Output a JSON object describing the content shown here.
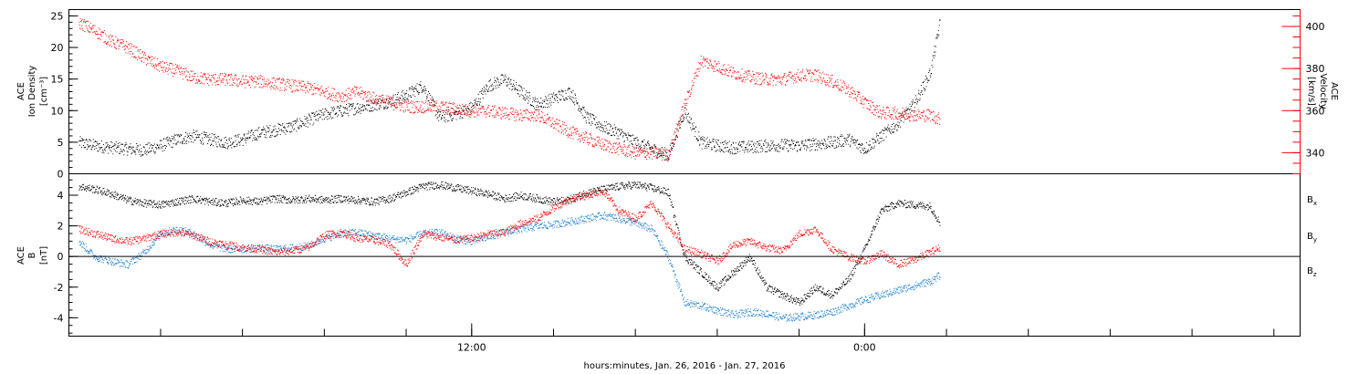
{
  "chart_data": [
    {
      "type": "scatter",
      "panel": "top",
      "ylabel_left": [
        "ACE",
        "Ion Density",
        "[cm⁻³]"
      ],
      "ylabel_right": [
        "ACE",
        "Velocity",
        "[km/s]"
      ],
      "ylim_left": [
        0,
        26
      ],
      "yticks_left": [
        0,
        5,
        10,
        15,
        20,
        25
      ],
      "ylim_right": [
        330,
        408
      ],
      "yticks_right": [
        340,
        360,
        380,
        400
      ],
      "colors": {
        "left": "#000000",
        "right": "#ff0000"
      },
      "series": [
        {
          "axis": "left",
          "color": "#000000",
          "x": [
            0,
            0.5,
            1,
            1.5,
            2,
            2.5,
            3,
            3.5,
            4,
            4.5,
            5,
            5.5,
            6,
            6.5,
            7,
            7.5,
            8,
            8.5,
            9,
            9.5,
            10,
            10.5,
            11,
            11.5,
            12,
            12.5,
            13,
            13.5,
            14,
            14.5,
            15,
            15.5,
            16,
            16.5,
            17,
            17.5,
            18,
            18.5,
            19,
            19.5,
            20,
            20.5,
            21,
            21.5,
            22,
            22.5,
            23,
            23.5,
            24,
            24.5,
            25,
            25.5,
            26,
            26.3
          ],
          "values": [
            5,
            4.5,
            4.2,
            4,
            3.8,
            4.5,
            5.5,
            6,
            5.5,
            5,
            5.5,
            6.5,
            7,
            7.5,
            8.5,
            9.5,
            10,
            10.5,
            11,
            11.5,
            12.5,
            14,
            9,
            9.5,
            10.5,
            14,
            15,
            13,
            11,
            12,
            13,
            9,
            7.5,
            6.5,
            5,
            4,
            3,
            10,
            5,
            4.5,
            4.2,
            4.3,
            4.5,
            4.6,
            4.5,
            4.8,
            5,
            5.5,
            4,
            6,
            8,
            11,
            16,
            24
          ]
        },
        {
          "axis": "right",
          "color": "#ff0000",
          "x": [
            0,
            0.5,
            1,
            1.5,
            2,
            2.5,
            3,
            3.5,
            4,
            4.5,
            5,
            5.5,
            6,
            6.5,
            7,
            7.5,
            8,
            8.5,
            9,
            9.5,
            10,
            10.5,
            11,
            11.5,
            12,
            12.5,
            13,
            13.5,
            14,
            14.5,
            15,
            15.5,
            16,
            16.5,
            17,
            17.5,
            18,
            18.5,
            19,
            19.5,
            20,
            20.5,
            21,
            21.5,
            22,
            22.5,
            23,
            23.5,
            24,
            24.5,
            25,
            25.5,
            26,
            26.3
          ],
          "values": [
            402,
            398,
            393,
            390,
            385,
            381,
            379,
            376,
            375,
            375,
            374,
            374,
            373,
            372,
            371,
            369,
            367,
            369,
            366,
            364,
            362,
            362,
            362,
            361,
            360,
            360,
            359,
            358,
            358,
            354,
            350,
            347,
            344,
            342,
            340,
            340,
            339,
            363,
            384,
            381,
            378,
            376,
            375,
            375,
            377,
            377,
            374,
            370,
            364,
            359,
            359,
            358,
            358,
            356
          ]
        }
      ]
    },
    {
      "type": "scatter",
      "panel": "bottom",
      "ylabel_left": [
        "ACE",
        "B",
        "[nT]"
      ],
      "ylim": [
        -5.2,
        5.4
      ],
      "yticks": [
        -4,
        -2,
        0,
        2,
        4
      ],
      "legend_position": "right",
      "legend": [
        {
          "base": "B",
          "sub": "x",
          "color": "#000000"
        },
        {
          "base": "B",
          "sub": "y",
          "color": "#1a7fd4"
        },
        {
          "base": "B",
          "sub": "z",
          "color": "#ff0000"
        }
      ],
      "series": [
        {
          "name": "Bx",
          "color": "#000000",
          "x": [
            0,
            0.5,
            1,
            1.5,
            2,
            2.5,
            3,
            3.5,
            4,
            4.5,
            5,
            5.5,
            6,
            6.5,
            7,
            7.5,
            8,
            8.5,
            9,
            9.5,
            10,
            10.5,
            11,
            11.5,
            12,
            12.5,
            13,
            13.5,
            14,
            14.5,
            15,
            15.5,
            16,
            16.5,
            17,
            17.5,
            18,
            18.5,
            19,
            19.5,
            20,
            20.5,
            21,
            21.5,
            22,
            22.5,
            23,
            23.5,
            24,
            24.5,
            25,
            25.5,
            26,
            26.3
          ],
          "values": [
            4.6,
            4.4,
            4.1,
            3.7,
            3.5,
            3.4,
            3.6,
            3.8,
            3.6,
            3.5,
            3.7,
            3.6,
            3.8,
            3.7,
            3.8,
            3.7,
            3.8,
            3.7,
            3.6,
            3.8,
            4.2,
            4.6,
            4.7,
            4.5,
            4.3,
            4.1,
            3.8,
            4,
            3.8,
            3.6,
            3.7,
            4.2,
            4.4,
            4.6,
            4.7,
            4.5,
            4.2,
            0,
            -1,
            -2,
            -1,
            0,
            -2,
            -2.5,
            -3,
            -2,
            -2.5,
            -1.5,
            0.5,
            3,
            3.5,
            3.4,
            3.3,
            2.2
          ]
        },
        {
          "name": "By",
          "color": "#1a7fd4",
          "x": [
            0,
            0.5,
            1,
            1.5,
            2,
            2.5,
            3,
            3.5,
            4,
            4.5,
            5,
            5.5,
            6,
            6.5,
            7,
            7.5,
            8,
            8.5,
            9,
            9.5,
            10,
            10.5,
            11,
            11.5,
            12,
            12.5,
            13,
            13.5,
            14,
            14.5,
            15,
            15.5,
            16,
            16.5,
            17,
            17.5,
            18,
            18.5,
            19,
            19.5,
            20,
            20.5,
            21,
            21.5,
            22,
            22.5,
            23,
            23.5,
            24,
            24.5,
            25,
            25.5,
            26,
            26.3
          ],
          "values": [
            1,
            0,
            -0.3,
            -0.5,
            0.3,
            1.5,
            1.8,
            1.5,
            0.8,
            0.5,
            0.5,
            0.6,
            0.5,
            0.6,
            0.7,
            1.2,
            1.5,
            1.6,
            1.4,
            1.2,
            1.1,
            1.5,
            1.6,
            1.2,
            1,
            1.3,
            1.6,
            1.8,
            2,
            2.1,
            2.3,
            2.5,
            2.7,
            2.5,
            2.2,
            1.8,
            0,
            -3,
            -3.2,
            -3.5,
            -3.8,
            -3.6,
            -3.7,
            -4,
            -3.9,
            -3.8,
            -3.6,
            -3.2,
            -2.8,
            -2.5,
            -2.2,
            -1.9,
            -1.6,
            -1.2
          ]
        },
        {
          "name": "Bz",
          "color": "#ff0000",
          "x": [
            0,
            0.5,
            1,
            1.5,
            2,
            2.5,
            3,
            3.5,
            4,
            4.5,
            5,
            5.5,
            6,
            6.5,
            7,
            7.5,
            8,
            8.5,
            9,
            9.5,
            10,
            10.5,
            11,
            11.5,
            12,
            12.5,
            13,
            13.5,
            14,
            14.5,
            15,
            15.5,
            16,
            16.5,
            17,
            17.5,
            18,
            18.5,
            19,
            19.5,
            20,
            20.5,
            21,
            21.5,
            22,
            22.5,
            23,
            23.5,
            24,
            24.5,
            25,
            25.5,
            26,
            26.3
          ],
          "values": [
            1.8,
            1.5,
            1.2,
            1,
            1.2,
            1.5,
            1.6,
            1.4,
            1,
            0.8,
            0.6,
            0.5,
            0.3,
            0.4,
            0.6,
            1.4,
            1.6,
            1.2,
            1.1,
            0.8,
            -0.5,
            1.5,
            1.3,
            1.1,
            1.2,
            1.5,
            1.6,
            2.2,
            2.5,
            3.2,
            3.8,
            4,
            4.3,
            3,
            2.5,
            3.5,
            2,
            0.5,
            0.2,
            -0.3,
            0.8,
            1,
            0.6,
            0.4,
            1.5,
            1.8,
            0.5,
            0,
            -0.3,
            0.2,
            -0.5,
            -0.2,
            0.3,
            0.6
          ]
        }
      ]
    }
  ],
  "xaxis": {
    "label": "hours:minutes, Jan. 26, 2016 - Jan. 27, 2016",
    "xlim": [
      -0.3,
      37.3
    ],
    "tick_labels": [
      {
        "x": 12,
        "label": "12:00"
      },
      {
        "x": 24,
        "label": "0:00"
      }
    ],
    "minor_tick_hours": [
      2.5,
      5,
      7.5,
      10,
      12,
      14.5,
      17,
      19.5,
      22,
      24,
      26.5,
      29,
      31.5,
      34,
      36.5
    ]
  }
}
